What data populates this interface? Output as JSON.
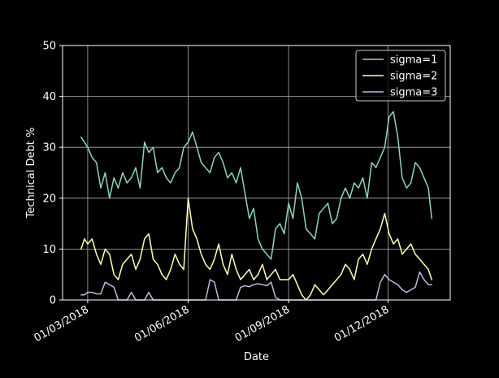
{
  "chart_data": {
    "type": "line",
    "title": "",
    "xlabel": "Date",
    "ylabel": "Technical Debt %",
    "x_ticks": [
      "01/03/2018",
      "01/06/2018",
      "01/09/2018",
      "01/12/2018"
    ],
    "x_tick_dates": [
      "2018-03-01",
      "2018-06-01",
      "2018-09-01",
      "2018-12-01"
    ],
    "xlim": [
      "2018-02-06",
      "2019-01-27"
    ],
    "ylim": [
      0,
      50
    ],
    "y_ticks": [
      0,
      10,
      20,
      30,
      40,
      50
    ],
    "grid": true,
    "legend_position": "top-right",
    "background": "#000000",
    "series": [
      {
        "name": "sigma=1",
        "color": "#8dd3c7",
        "x": [
          "2018-02-23",
          "2018-02-26",
          "2018-03-01",
          "2018-03-05",
          "2018-03-09",
          "2018-03-13",
          "2018-03-17",
          "2018-03-21",
          "2018-03-25",
          "2018-03-29",
          "2018-04-02",
          "2018-04-06",
          "2018-04-10",
          "2018-04-14",
          "2018-04-18",
          "2018-04-22",
          "2018-04-26",
          "2018-04-30",
          "2018-05-04",
          "2018-05-08",
          "2018-05-12",
          "2018-05-16",
          "2018-05-20",
          "2018-05-24",
          "2018-05-28",
          "2018-06-01",
          "2018-06-05",
          "2018-06-09",
          "2018-06-13",
          "2018-06-17",
          "2018-06-21",
          "2018-06-25",
          "2018-06-29",
          "2018-07-03",
          "2018-07-07",
          "2018-07-11",
          "2018-07-15",
          "2018-07-19",
          "2018-07-23",
          "2018-07-27",
          "2018-07-31",
          "2018-08-04",
          "2018-08-08",
          "2018-08-12",
          "2018-08-16",
          "2018-08-20",
          "2018-08-24",
          "2018-08-28",
          "2018-09-01",
          "2018-09-05",
          "2018-09-09",
          "2018-09-13",
          "2018-09-17",
          "2018-09-21",
          "2018-09-25",
          "2018-09-29",
          "2018-10-03",
          "2018-10-07",
          "2018-10-11",
          "2018-10-15",
          "2018-10-19",
          "2018-10-23",
          "2018-10-27",
          "2018-10-31",
          "2018-11-04",
          "2018-11-08",
          "2018-11-12",
          "2018-11-16",
          "2018-11-20",
          "2018-11-24",
          "2018-11-28",
          "2018-12-02",
          "2018-12-06",
          "2018-12-10",
          "2018-12-14",
          "2018-12-18",
          "2018-12-22",
          "2018-12-26",
          "2018-12-30",
          "2019-01-03",
          "2019-01-07",
          "2019-01-10"
        ],
        "values": [
          32,
          31,
          30,
          28,
          27,
          22,
          25,
          20,
          24,
          22,
          25,
          23,
          24,
          26,
          22,
          31,
          29,
          30,
          25,
          26,
          24,
          23,
          25,
          26,
          30,
          31,
          33,
          30,
          27,
          26,
          25,
          28,
          29,
          27,
          24,
          25,
          23,
          26,
          21,
          16,
          18,
          12,
          10,
          9,
          8,
          14,
          15,
          13,
          19,
          16,
          23,
          20,
          14,
          13,
          12,
          17,
          18,
          19,
          15,
          16,
          20,
          22,
          20,
          23,
          22,
          24,
          20,
          27,
          26,
          28,
          30,
          36,
          37,
          32,
          24,
          22,
          23,
          27,
          26,
          24,
          22,
          16
        ]
      },
      {
        "name": "sigma=2",
        "color": "#ffffb3",
        "x": [
          "2018-02-23",
          "2018-02-26",
          "2018-03-01",
          "2018-03-05",
          "2018-03-09",
          "2018-03-13",
          "2018-03-17",
          "2018-03-21",
          "2018-03-25",
          "2018-03-29",
          "2018-04-02",
          "2018-04-06",
          "2018-04-10",
          "2018-04-14",
          "2018-04-18",
          "2018-04-22",
          "2018-04-26",
          "2018-04-30",
          "2018-05-04",
          "2018-05-08",
          "2018-05-12",
          "2018-05-16",
          "2018-05-20",
          "2018-05-24",
          "2018-05-28",
          "2018-06-01",
          "2018-06-05",
          "2018-06-09",
          "2018-06-13",
          "2018-06-17",
          "2018-06-21",
          "2018-06-25",
          "2018-06-29",
          "2018-07-03",
          "2018-07-07",
          "2018-07-11",
          "2018-07-15",
          "2018-07-19",
          "2018-07-23",
          "2018-07-27",
          "2018-07-31",
          "2018-08-04",
          "2018-08-08",
          "2018-08-12",
          "2018-08-16",
          "2018-08-20",
          "2018-08-24",
          "2018-08-28",
          "2018-09-01",
          "2018-09-05",
          "2018-09-09",
          "2018-09-13",
          "2018-09-17",
          "2018-09-21",
          "2018-09-25",
          "2018-09-29",
          "2018-10-03",
          "2018-10-07",
          "2018-10-11",
          "2018-10-15",
          "2018-10-19",
          "2018-10-23",
          "2018-10-27",
          "2018-10-31",
          "2018-11-04",
          "2018-11-08",
          "2018-11-12",
          "2018-11-16",
          "2018-11-20",
          "2018-11-24",
          "2018-11-28",
          "2018-12-02",
          "2018-12-06",
          "2018-12-10",
          "2018-12-14",
          "2018-12-18",
          "2018-12-22",
          "2018-12-26",
          "2018-12-30",
          "2019-01-03",
          "2019-01-07",
          "2019-01-10"
        ],
        "values": [
          10,
          12,
          11,
          12,
          9,
          7,
          10,
          9,
          5,
          4,
          7,
          8,
          9,
          6,
          8,
          12,
          13,
          8,
          7,
          5,
          4,
          6,
          9,
          7,
          6,
          20,
          14,
          12,
          9,
          7,
          6,
          8,
          11,
          7,
          5,
          9,
          6,
          4,
          5,
          6,
          4,
          5,
          7,
          4,
          5,
          6,
          4,
          4,
          4,
          5,
          3,
          1,
          0,
          1,
          3,
          2,
          1,
          2,
          3,
          4,
          5,
          7,
          6,
          4,
          8,
          9,
          7,
          10,
          12,
          14,
          17,
          13,
          11,
          12,
          9,
          10,
          11,
          9,
          8,
          7,
          6,
          4
        ]
      },
      {
        "name": "sigma=3",
        "color": "#bebada",
        "x": [
          "2018-02-23",
          "2018-02-26",
          "2018-03-01",
          "2018-03-05",
          "2018-03-09",
          "2018-03-13",
          "2018-03-17",
          "2018-03-21",
          "2018-03-25",
          "2018-03-29",
          "2018-04-02",
          "2018-04-06",
          "2018-04-10",
          "2018-04-14",
          "2018-04-18",
          "2018-04-22",
          "2018-04-26",
          "2018-04-30",
          "2018-05-04",
          "2018-05-08",
          "2018-05-12",
          "2018-05-16",
          "2018-05-20",
          "2018-05-24",
          "2018-05-28",
          "2018-06-01",
          "2018-06-05",
          "2018-06-09",
          "2018-06-13",
          "2018-06-17",
          "2018-06-21",
          "2018-06-25",
          "2018-06-29",
          "2018-07-03",
          "2018-07-07",
          "2018-07-11",
          "2018-07-15",
          "2018-07-19",
          "2018-07-23",
          "2018-07-27",
          "2018-07-31",
          "2018-08-04",
          "2018-08-08",
          "2018-08-12",
          "2018-08-16",
          "2018-08-20",
          "2018-08-24",
          "2018-08-28",
          "2018-09-01",
          "2018-09-05",
          "2018-09-09",
          "2018-09-13",
          "2018-09-17",
          "2018-09-21",
          "2018-09-25",
          "2018-09-29",
          "2018-10-03",
          "2018-10-07",
          "2018-10-11",
          "2018-10-15",
          "2018-10-19",
          "2018-10-23",
          "2018-10-27",
          "2018-10-31",
          "2018-11-04",
          "2018-11-08",
          "2018-11-12",
          "2018-11-16",
          "2018-11-20",
          "2018-11-24",
          "2018-11-28",
          "2018-12-02",
          "2018-12-06",
          "2018-12-10",
          "2018-12-14",
          "2018-12-18",
          "2018-12-22",
          "2018-12-26",
          "2018-12-30",
          "2019-01-03",
          "2019-01-07",
          "2019-01-10"
        ],
        "values": [
          1,
          1,
          1.5,
          1.5,
          1.2,
          1.2,
          3.5,
          3,
          2.5,
          0,
          0,
          0,
          1.5,
          0,
          0,
          0,
          1.5,
          0,
          0,
          0,
          0,
          0,
          0,
          0,
          0,
          0,
          0,
          0,
          0,
          0,
          4,
          3.5,
          0,
          0,
          0,
          0,
          0,
          2.5,
          2.8,
          2.6,
          3,
          3.2,
          3,
          2.8,
          3.5,
          0.5,
          0,
          0,
          0,
          0,
          0,
          0,
          0,
          0,
          0,
          0,
          0,
          0,
          0,
          0,
          0,
          0,
          0,
          0,
          0,
          0,
          0,
          0,
          0,
          3.5,
          5,
          4,
          3.5,
          3,
          2,
          1.5,
          2,
          2.5,
          5.5,
          4,
          3,
          3
        ]
      }
    ]
  }
}
